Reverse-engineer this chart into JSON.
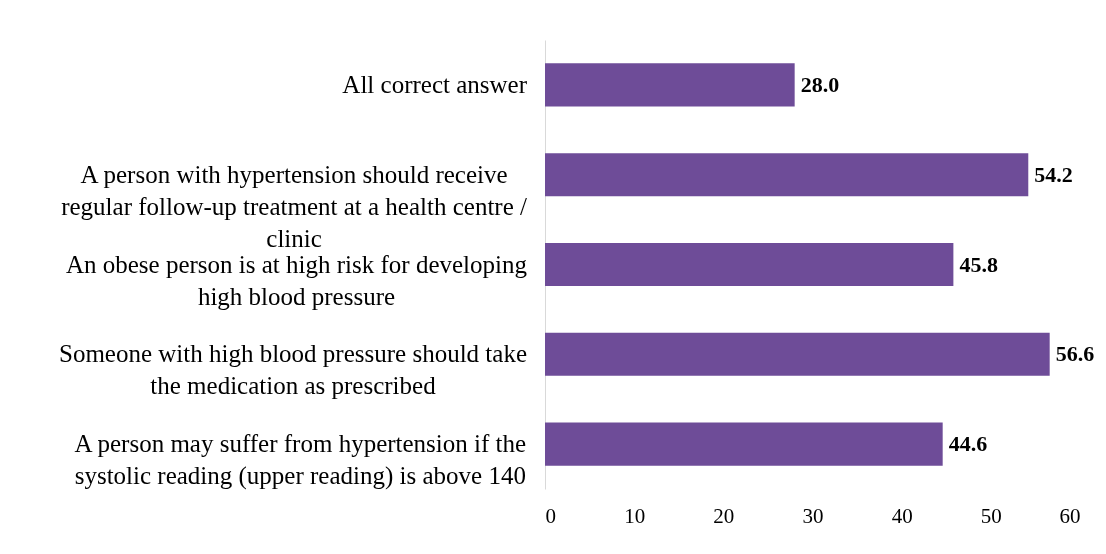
{
  "chart_data": {
    "type": "bar",
    "orientation": "horizontal",
    "categories": [
      "All correct answer",
      "A person with hypertension should receive regular follow-up treatment at a health centre / clinic",
      "An obese person is at high risk for developing high blood pressure",
      "Someone with high blood pressure should take the medication as prescribed",
      "A person may suffer from hypertension if the systolic reading (upper reading) is above 140"
    ],
    "values": [
      28.0,
      54.2,
      45.8,
      56.6,
      44.6
    ],
    "value_labels": [
      "28.0",
      "54.2",
      "45.8",
      "56.6",
      "44.6"
    ],
    "color": "#6e4c98",
    "xlim": [
      0,
      60
    ],
    "xticks": [
      0,
      10,
      20,
      30,
      40,
      50,
      60
    ],
    "grid": false
  }
}
